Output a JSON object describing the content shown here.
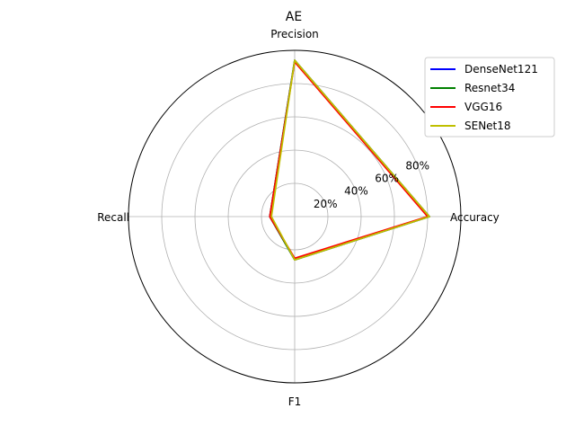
{
  "chart_data": {
    "type": "radar",
    "title": "AE",
    "axes": [
      "Accuracy",
      "Precision",
      "Recall",
      "F1"
    ],
    "radial_ticks": [
      "20%",
      "40%",
      "60%",
      "80%"
    ],
    "radial_tick_values": [
      20,
      40,
      60,
      80
    ],
    "rlim": [
      0,
      100
    ],
    "grid": true,
    "legend_position": "top-right",
    "series": [
      {
        "name": "DenseNet121",
        "color": "#0000ff",
        "values": [
          81,
          94,
          15,
          26
        ]
      },
      {
        "name": "Resnet34",
        "color": "#008000",
        "values": [
          81,
          94,
          15,
          26
        ]
      },
      {
        "name": "VGG16",
        "color": "#ff0000",
        "values": [
          80,
          93,
          15,
          25
        ]
      },
      {
        "name": "SENet18",
        "color": "#bfbf00",
        "values": [
          81,
          94,
          14,
          26
        ]
      }
    ]
  }
}
